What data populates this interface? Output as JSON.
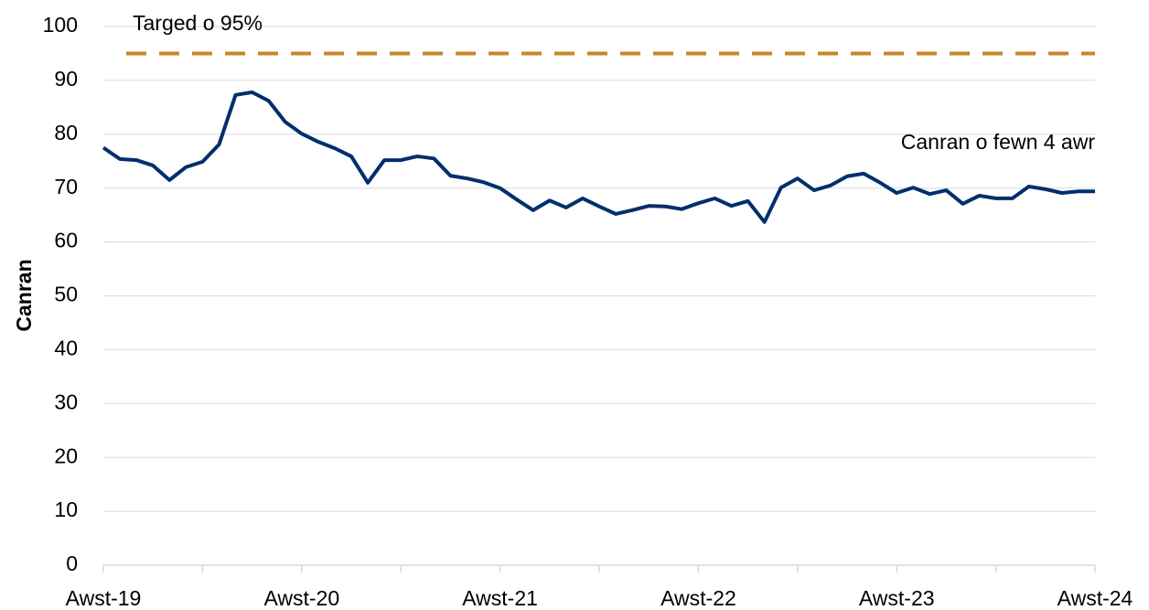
{
  "chart_data": {
    "type": "line",
    "y_label": "Canran",
    "categories": [
      "Awst-19",
      null,
      null,
      null,
      null,
      null,
      null,
      null,
      null,
      null,
      null,
      null,
      "Awst-20",
      null,
      null,
      null,
      null,
      null,
      null,
      null,
      null,
      null,
      null,
      null,
      "Awst-21",
      null,
      null,
      null,
      null,
      null,
      null,
      null,
      null,
      null,
      null,
      null,
      "Awst-22",
      null,
      null,
      null,
      null,
      null,
      null,
      null,
      null,
      null,
      null,
      null,
      "Awst-23",
      null,
      null,
      null,
      null,
      null,
      null,
      null,
      null,
      null,
      null,
      null,
      "Awst-24"
    ],
    "series": [
      {
        "name": "Canran o fewn 4 awr",
        "color": "#002f6c",
        "values": [
          77.5,
          75.4,
          75.2,
          74.2,
          71.5,
          73.9,
          74.9,
          78.1,
          87.3,
          87.8,
          86.2,
          82.3,
          80.1,
          78.6,
          77.4,
          75.9,
          71.0,
          75.2,
          75.2,
          75.9,
          75.5,
          72.3,
          71.8,
          71.1,
          70.0,
          67.9,
          65.9,
          67.7,
          66.4,
          68.1,
          66.6,
          65.2,
          65.9,
          66.7,
          66.6,
          66.1,
          67.2,
          68.1,
          66.7,
          67.6,
          63.7,
          70.1,
          71.8,
          69.6,
          70.5,
          72.2,
          72.7,
          71.0,
          69.1,
          70.1,
          68.9,
          69.6,
          67.1,
          68.6,
          68.1,
          68.1,
          70.3,
          69.8,
          69.1,
          69.4,
          69.4
        ]
      }
    ],
    "target": {
      "label": "Targed o 95%",
      "value": 95,
      "color": "#c8862a"
    },
    "ylim": [
      0,
      100
    ],
    "yticks": [
      0,
      10,
      20,
      30,
      40,
      50,
      60,
      70,
      80,
      90,
      100
    ],
    "grid": true
  }
}
